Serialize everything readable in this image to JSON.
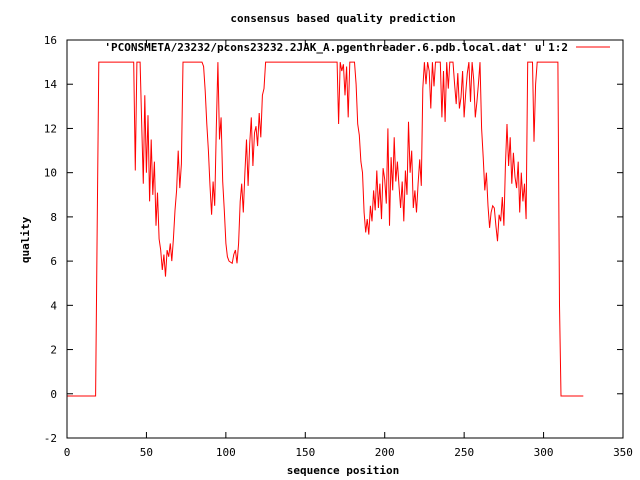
{
  "chart_data": {
    "type": "line",
    "title": "consensus based quality prediction",
    "xlabel": "sequence position",
    "ylabel": "quality",
    "xlim": [
      0,
      350
    ],
    "ylim": [
      -2,
      16
    ],
    "xticks": [
      0,
      50,
      100,
      150,
      200,
      250,
      300,
      350
    ],
    "yticks": [
      -2,
      0,
      2,
      4,
      6,
      8,
      10,
      12,
      14,
      16
    ],
    "grid": false,
    "legend_position": "top-right",
    "series": [
      {
        "name": "'PCONSMETA/23232/pcons23232.2JAK_A.pgenthreader.6.pdb.local.dat' u 1:2",
        "color": "#ff0000",
        "points": [
          [
            0,
            -0.1
          ],
          [
            18,
            -0.1
          ],
          [
            19,
            7.6
          ],
          [
            20,
            15
          ],
          [
            42,
            15
          ],
          [
            43,
            10.1
          ],
          [
            44,
            15
          ],
          [
            46,
            15
          ],
          [
            47,
            12.2
          ],
          [
            48,
            9.5
          ],
          [
            49,
            13.5
          ],
          [
            50,
            10
          ],
          [
            51,
            12.6
          ],
          [
            52,
            8.7
          ],
          [
            53,
            11.5
          ],
          [
            54,
            9
          ],
          [
            55,
            10.5
          ],
          [
            56,
            7.6
          ],
          [
            57,
            9.1
          ],
          [
            58,
            7
          ],
          [
            59,
            6.5
          ],
          [
            60,
            5.6
          ],
          [
            61,
            6.3
          ],
          [
            62,
            5.3
          ],
          [
            63,
            6.5
          ],
          [
            64,
            6.2
          ],
          [
            65,
            6.8
          ],
          [
            66,
            6
          ],
          [
            67,
            7
          ],
          [
            68,
            8.3
          ],
          [
            69,
            9.2
          ],
          [
            70,
            11
          ],
          [
            71,
            9.3
          ],
          [
            72,
            10.4
          ],
          [
            73,
            15
          ],
          [
            85,
            15
          ],
          [
            86,
            14.8
          ],
          [
            87,
            13.7
          ],
          [
            88,
            12.2
          ],
          [
            89,
            11
          ],
          [
            90,
            9.4
          ],
          [
            91,
            8.1
          ],
          [
            92,
            9.6
          ],
          [
            93,
            8.5
          ],
          [
            94,
            12
          ],
          [
            95,
            15
          ],
          [
            96,
            11.5
          ],
          [
            97,
            12.5
          ],
          [
            98,
            9.6
          ],
          [
            99,
            8.3
          ],
          [
            100,
            6.8
          ],
          [
            101,
            6.2
          ],
          [
            102,
            6
          ],
          [
            104,
            5.9
          ],
          [
            105,
            6.3
          ],
          [
            106,
            6.5
          ],
          [
            107,
            5.9
          ],
          [
            108,
            6.8
          ],
          [
            109,
            8.7
          ],
          [
            110,
            9.5
          ],
          [
            111,
            8.2
          ],
          [
            112,
            10
          ],
          [
            113,
            11.5
          ],
          [
            114,
            9.4
          ],
          [
            115,
            11.3
          ],
          [
            116,
            12.5
          ],
          [
            117,
            10.3
          ],
          [
            118,
            11.8
          ],
          [
            119,
            12.1
          ],
          [
            120,
            11.2
          ],
          [
            121,
            12.7
          ],
          [
            122,
            11.6
          ],
          [
            123,
            13.5
          ],
          [
            124,
            13.8
          ],
          [
            125,
            15
          ],
          [
            163,
            15
          ],
          [
            170,
            15
          ],
          [
            171,
            12.2
          ],
          [
            172,
            15
          ],
          [
            173,
            14.6
          ],
          [
            174,
            14.9
          ],
          [
            175,
            13.5
          ],
          [
            176,
            14.8
          ],
          [
            177,
            12.5
          ],
          [
            178,
            15
          ],
          [
            181,
            15
          ],
          [
            182,
            14
          ],
          [
            183,
            12.2
          ],
          [
            184,
            11.7
          ],
          [
            185,
            10.5
          ],
          [
            186,
            10
          ],
          [
            187,
            8.2
          ],
          [
            188,
            7.3
          ],
          [
            189,
            7.9
          ],
          [
            190,
            7.2
          ],
          [
            191,
            8.5
          ],
          [
            192,
            7.8
          ],
          [
            193,
            9.2
          ],
          [
            194,
            8.3
          ],
          [
            195,
            10.1
          ],
          [
            196,
            8.4
          ],
          [
            197,
            9.5
          ],
          [
            198,
            7.9
          ],
          [
            199,
            10.2
          ],
          [
            200,
            9.7
          ],
          [
            201,
            8.6
          ],
          [
            202,
            12
          ],
          [
            203,
            7.6
          ],
          [
            204,
            10.7
          ],
          [
            205,
            9.2
          ],
          [
            206,
            11.6
          ],
          [
            207,
            9.6
          ],
          [
            208,
            10.5
          ],
          [
            209,
            9.4
          ],
          [
            210,
            8.4
          ],
          [
            211,
            9.6
          ],
          [
            212,
            7.8
          ],
          [
            213,
            10.1
          ],
          [
            214,
            9
          ],
          [
            215,
            12.3
          ],
          [
            216,
            10
          ],
          [
            217,
            11
          ],
          [
            218,
            8.4
          ],
          [
            219,
            9.2
          ],
          [
            220,
            8.2
          ],
          [
            221,
            9.5
          ],
          [
            222,
            10.6
          ],
          [
            223,
            9.4
          ],
          [
            224,
            13.8
          ],
          [
            225,
            15
          ],
          [
            226,
            14
          ],
          [
            227,
            15
          ],
          [
            228,
            14.6
          ],
          [
            229,
            12.9
          ],
          [
            230,
            15
          ],
          [
            231,
            13.9
          ],
          [
            232,
            15
          ],
          [
            235,
            15
          ],
          [
            236,
            12.5
          ],
          [
            237,
            14.6
          ],
          [
            238,
            12.3
          ],
          [
            239,
            15
          ],
          [
            240,
            13.8
          ],
          [
            241,
            15
          ],
          [
            243,
            15
          ],
          [
            244,
            14
          ],
          [
            245,
            13.1
          ],
          [
            246,
            14.5
          ],
          [
            247,
            12.9
          ],
          [
            248,
            13.4
          ],
          [
            249,
            14.6
          ],
          [
            250,
            12.5
          ],
          [
            251,
            13.6
          ],
          [
            252,
            14.5
          ],
          [
            253,
            15
          ],
          [
            254,
            13.2
          ],
          [
            255,
            15
          ],
          [
            256,
            14.2
          ],
          [
            257,
            12.5
          ],
          [
            258,
            13.2
          ],
          [
            259,
            14
          ],
          [
            260,
            15
          ],
          [
            261,
            12
          ],
          [
            262,
            10.7
          ],
          [
            263,
            9.2
          ],
          [
            264,
            10
          ],
          [
            265,
            8.5
          ],
          [
            266,
            7.5
          ],
          [
            267,
            8.2
          ],
          [
            268,
            8.5
          ],
          [
            269,
            8.4
          ],
          [
            270,
            7.6
          ],
          [
            271,
            6.9
          ],
          [
            272,
            8.1
          ],
          [
            273,
            7.8
          ],
          [
            274,
            8.9
          ],
          [
            275,
            7.6
          ],
          [
            276,
            10.3
          ],
          [
            277,
            12.2
          ],
          [
            278,
            10.3
          ],
          [
            279,
            11.6
          ],
          [
            280,
            9.5
          ],
          [
            281,
            10.9
          ],
          [
            282,
            9.8
          ],
          [
            283,
            9.3
          ],
          [
            284,
            10.5
          ],
          [
            285,
            8.2
          ],
          [
            286,
            10
          ],
          [
            287,
            8.7
          ],
          [
            288,
            9.5
          ],
          [
            289,
            7.9
          ],
          [
            290,
            15
          ],
          [
            293,
            15
          ],
          [
            294,
            11.4
          ],
          [
            295,
            14
          ],
          [
            296,
            15
          ],
          [
            309,
            15
          ],
          [
            310,
            4
          ],
          [
            311,
            -0.1
          ],
          [
            325,
            -0.1
          ]
        ]
      }
    ]
  }
}
